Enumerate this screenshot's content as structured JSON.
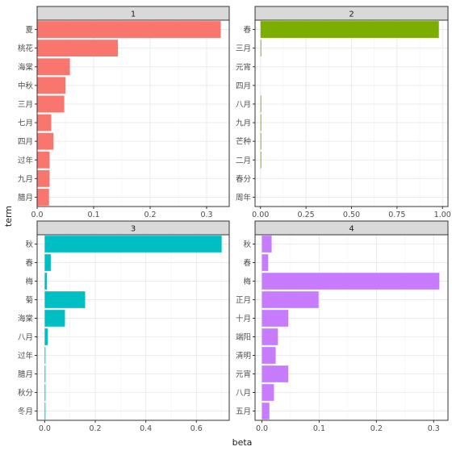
{
  "chart_data": {
    "type": "bar",
    "orientation": "horizontal",
    "faceted": true,
    "xlabel": "beta",
    "ylabel": "term",
    "facets": [
      {
        "title": "1",
        "color": "#F8766D",
        "xlim": [
          0,
          0.34
        ],
        "ticks": [
          0,
          0.1,
          0.2,
          0.3
        ],
        "tick_labels": [
          "0.0",
          "0.1",
          "0.2",
          "0.3"
        ],
        "categories": [
          "夏",
          "桃花",
          "海棠",
          "中秋",
          "三月",
          "七月",
          "四月",
          "过年",
          "九月",
          "腊月"
        ],
        "values": [
          0.325,
          0.143,
          0.058,
          0.05,
          0.048,
          0.025,
          0.029,
          0.022,
          0.022,
          0.021
        ]
      },
      {
        "title": "2",
        "color": "#7CAE00",
        "xlim": [
          -0.03,
          1.03
        ],
        "ticks": [
          0,
          0.25,
          0.5,
          0.75,
          1.0
        ],
        "tick_labels": [
          "0.00",
          "0.25",
          "0.50",
          "0.75",
          "1.00"
        ],
        "categories": [
          "春",
          "三月",
          "元宵",
          "四月",
          "八月",
          "九月",
          "芒种",
          "二月",
          "春分",
          "周年"
        ],
        "values": [
          0.98,
          0.004,
          0.0,
          0.0,
          0.004,
          0.004,
          0.004,
          0.004,
          0.0,
          0.0
        ]
      },
      {
        "title": "3",
        "color": "#00BFC4",
        "xlim": [
          -0.03,
          0.73
        ],
        "ticks": [
          0,
          0.2,
          0.4,
          0.6
        ],
        "tick_labels": [
          "0.0",
          "0.2",
          "0.4",
          "0.6"
        ],
        "categories": [
          "秋",
          "春",
          "梅",
          "菊",
          "海棠",
          "八月",
          "过年",
          "腊月",
          "秋分",
          "冬月"
        ],
        "values": [
          0.7,
          0.024,
          0.009,
          0.16,
          0.08,
          0.012,
          0.003,
          0.003,
          0.003,
          0.003
        ]
      },
      {
        "title": "4",
        "color": "#C77CFF",
        "xlim": [
          -0.012,
          0.325
        ],
        "ticks": [
          0,
          0.1,
          0.2,
          0.3
        ],
        "tick_labels": [
          "0.0",
          "0.1",
          "0.2",
          "0.3"
        ],
        "categories": [
          "秋",
          "春",
          "梅",
          "正月",
          "十月",
          "端阳",
          "清明",
          "元宵",
          "八月",
          "五月"
        ],
        "values": [
          0.017,
          0.011,
          0.31,
          0.099,
          0.046,
          0.028,
          0.024,
          0.046,
          0.021,
          0.013
        ]
      }
    ]
  }
}
